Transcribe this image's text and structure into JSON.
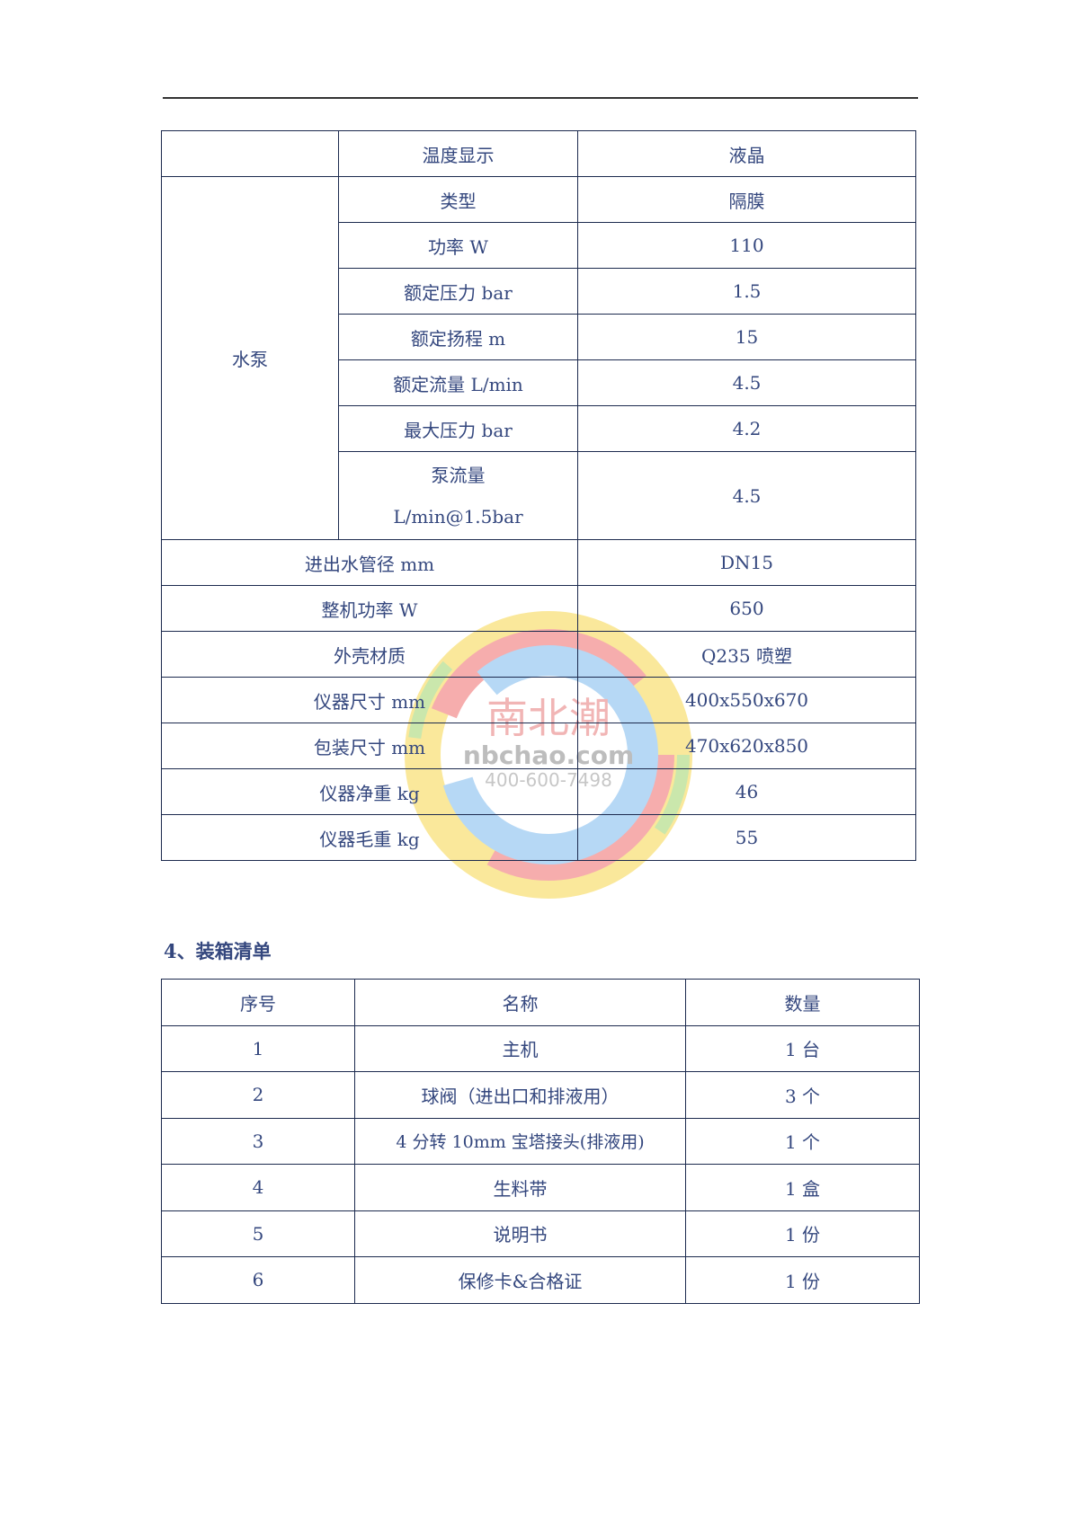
{
  "spec_table": {
    "rows": [
      {
        "group": "",
        "param": "温度显示",
        "value": "液晶"
      },
      {
        "group": "水泵",
        "param": "类型",
        "value": "隔膜"
      },
      {
        "param": "功率 W",
        "value": "110"
      },
      {
        "param": "额定压力 bar",
        "value": "1.5"
      },
      {
        "param": "额定扬程 m",
        "value": "15"
      },
      {
        "param": "额定流量 L/min",
        "value": "4.5"
      },
      {
        "param": "最大压力 bar",
        "value": "4.2"
      },
      {
        "param_line1": "泵流量",
        "param_line2": "L/min@1.5bar",
        "value": "4.5"
      },
      {
        "param": "进出水管径 mm",
        "value": "DN15"
      },
      {
        "param": "整机功率 W",
        "value": "650"
      },
      {
        "param": "外壳材质",
        "value": "Q235 喷塑"
      },
      {
        "param": "仪器尺寸 mm",
        "value": "400x550x670"
      },
      {
        "param": "包装尺寸 mm",
        "value": "470x620x850"
      },
      {
        "param": "仪器净重 kg",
        "value": "46"
      },
      {
        "param": "仪器毛重 kg",
        "value": "55"
      }
    ]
  },
  "packing": {
    "heading": "4、装箱清单",
    "headers": [
      "序号",
      "名称",
      "数量"
    ],
    "rows": [
      [
        "1",
        "主机",
        "1 台"
      ],
      [
        "2",
        "球阀（进出口和排液用）",
        "3 个"
      ],
      [
        "3",
        "4 分转 10mm 宝塔接头(排液用)",
        "1 个"
      ],
      [
        "4",
        "生料带",
        "1 盒"
      ],
      [
        "5",
        "说明书",
        "1 份"
      ],
      [
        "6",
        "保修卡&合格证",
        "1 份"
      ]
    ]
  },
  "watermark": {
    "brand": "南北潮",
    "site": "nbchao.com",
    "phone": "400-600-7498"
  },
  "colors": {
    "text": "#34477e",
    "border": "#1c2a4e"
  }
}
